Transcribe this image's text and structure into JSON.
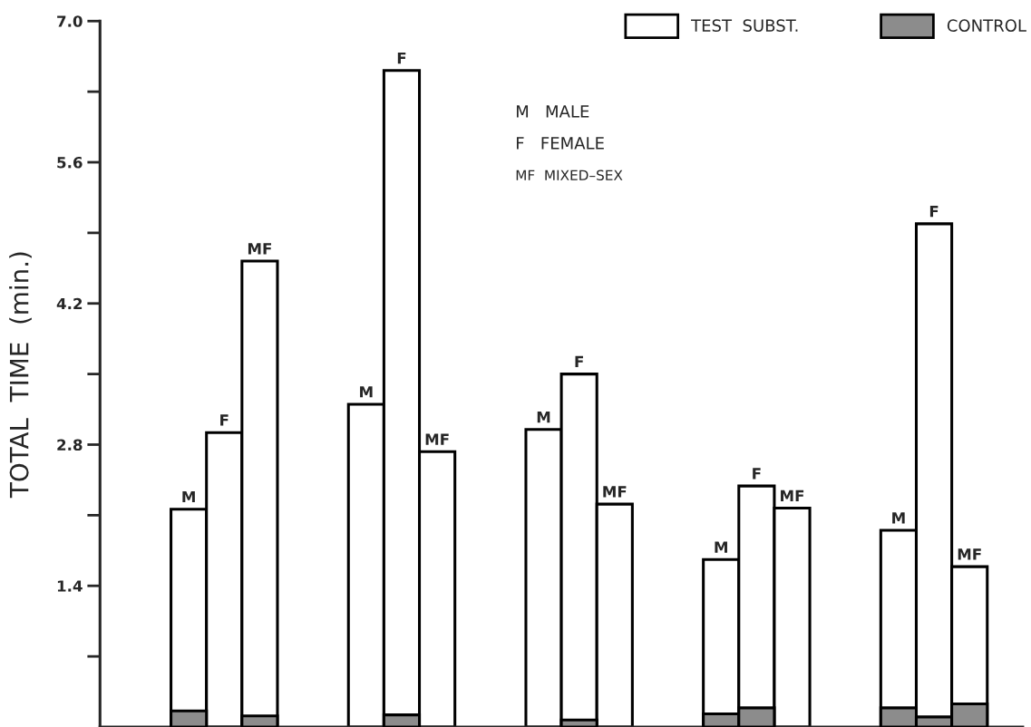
{
  "chart_data": {
    "type": "bar",
    "ylabel": "TOTAL  TIME  (min.)",
    "categories": [
      null,
      null,
      null,
      null,
      null,
      null,
      null,
      null,
      null,
      null,
      null,
      null,
      null,
      null,
      null,
      null,
      null,
      null,
      null,
      null,
      null,
      null,
      null,
      null,
      null,
      null
    ],
    "series": [
      {
        "name": "TEST  SUBST.",
        "color": "#ffffff",
        "values": [
          null,
          null,
          2.16,
          2.92,
          4.62,
          null,
          null,
          3.2,
          6.51,
          2.73,
          null,
          null,
          2.95,
          3.5,
          2.21,
          null,
          null,
          1.66,
          2.39,
          2.17,
          null,
          null,
          1.95,
          4.99,
          1.59,
          null
        ],
        "value_labels": [
          null,
          null,
          "M",
          "F",
          "MF",
          null,
          null,
          "M",
          "F",
          "MF",
          null,
          null,
          "M",
          "F",
          "MF",
          null,
          null,
          "M",
          "F",
          "MF",
          null,
          null,
          "M",
          "F",
          "MF",
          null
        ]
      },
      {
        "name": "CONTROL",
        "color": "#8c8c8c",
        "values": [
          null,
          null,
          0.16,
          null,
          0.11,
          null,
          null,
          null,
          0.12,
          null,
          null,
          null,
          null,
          0.07,
          null,
          null,
          null,
          0.13,
          0.19,
          null,
          null,
          null,
          0.19,
          0.1,
          0.23,
          null
        ]
      }
    ],
    "ylim": [
      0,
      7.0
    ],
    "yticks": [
      {
        "value": 0.7,
        "label": null
      },
      1.4,
      {
        "value": 2.1,
        "label": null
      },
      2.8,
      {
        "value": 3.5,
        "label": null
      },
      4.2,
      {
        "value": 4.9,
        "label": null
      },
      5.6,
      {
        "value": 6.3,
        "label": null
      },
      {
        "value": 7.0,
        "label": "7.0"
      }
    ],
    "tick_labels": "y",
    "grid": false,
    "legend": "top right",
    "annotations": [
      "M   MALE",
      "F   FEMALE",
      "MF  MIXED–SEX"
    ]
  }
}
